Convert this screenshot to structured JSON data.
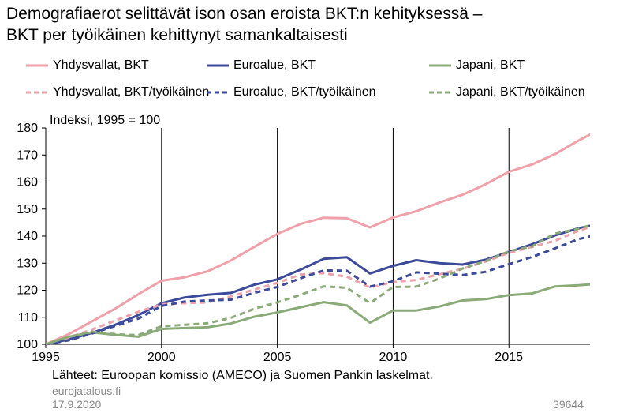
{
  "title_line1": "Demografiaerot selittävät ison osan eroista BKT:n kehityksessä –",
  "title_line2": "BKT per työikäinen kehittynyt samankaltaisesti",
  "source": "Lähteet: Euroopan komissio (AMECO) ja Suomen Pankin laskelmat.",
  "site": "eurojatalous.fi",
  "date": "17.9.2020",
  "code": "39644",
  "chart_data": {
    "type": "line",
    "ylabel": "Indeksi, 1995 = 100",
    "ylim": [
      100,
      180
    ],
    "yticks": [
      100,
      110,
      120,
      130,
      140,
      150,
      160,
      170,
      180
    ],
    "xlim": [
      1995,
      2018.5
    ],
    "xticks": [
      1995,
      2000,
      2005,
      2010,
      2015
    ],
    "x": [
      1995,
      1996,
      1997,
      1998,
      1999,
      2000,
      2001,
      2002,
      2003,
      2004,
      2005,
      2006,
      2007,
      2008,
      2009,
      2010,
      2011,
      2012,
      2013,
      2014,
      2015,
      2016,
      2017,
      2018,
      2019
    ],
    "legend_position": "top",
    "series": [
      {
        "name": "Yhdysvallat, BKT",
        "color": "#f0a0a8",
        "dash": "solid",
        "values": [
          100,
          103.8,
          108.5,
          113.2,
          118.5,
          123.5,
          124.8,
          127,
          131,
          136,
          140.8,
          144.5,
          146.8,
          146.6,
          143.2,
          146.9,
          149.2,
          152.4,
          155.3,
          159.2,
          163.8,
          166.5,
          170.4,
          175.3,
          179.8
        ]
      },
      {
        "name": "Euroalue, BKT",
        "color": "#3c4a9c",
        "dash": "solid",
        "values": [
          100,
          101.8,
          104.2,
          107.2,
          110.8,
          115.2,
          117.3,
          118.3,
          119,
          122,
          124,
          127.6,
          131.6,
          132.2,
          126.2,
          129,
          131.1,
          130,
          129.5,
          131.3,
          134.1,
          137,
          140.3,
          142.9,
          144.8
        ]
      },
      {
        "name": "Japani, BKT",
        "color": "#8aab78",
        "dash": "solid",
        "values": [
          100,
          102.8,
          104.4,
          103.5,
          102.8,
          105.7,
          106,
          106.3,
          107.7,
          110.2,
          111.8,
          113.7,
          115.6,
          114.4,
          108,
          112.5,
          112.5,
          114,
          116.2,
          116.7,
          118.2,
          118.8,
          121.4,
          121.8,
          122.5
        ]
      },
      {
        "name": "Yhdysvallat, BKT/työikäinen",
        "color": "#f0a0a8",
        "dash": "dashed",
        "values": [
          100,
          102.5,
          105.5,
          108.8,
          112,
          114.8,
          115.2,
          115.5,
          117.7,
          120.2,
          122.7,
          125.8,
          126.3,
          125,
          121,
          123,
          123.8,
          125.9,
          127.9,
          130.6,
          133.8,
          136,
          138.3,
          142,
          144.8
        ]
      },
      {
        "name": "Euroalue, BKT/työikäinen",
        "color": "#3c4a9c",
        "dash": "dashed",
        "values": [
          100,
          101.5,
          104,
          106.8,
          109.5,
          114.2,
          115.8,
          116.2,
          116.5,
          119,
          121.2,
          124.4,
          127.3,
          127.2,
          121.3,
          123.3,
          126.6,
          126.1,
          125.6,
          126.8,
          129.6,
          132.3,
          135.5,
          138.9,
          140.8
        ]
      },
      {
        "name": "Japani, BKT/työikäinen",
        "color": "#8aab78",
        "dash": "dashed",
        "values": [
          100,
          102.8,
          104.7,
          103.7,
          103.4,
          106.7,
          107.2,
          107.8,
          109.8,
          113.1,
          115.5,
          118.3,
          121.4,
          120.9,
          115.2,
          121.2,
          121.3,
          124.3,
          128,
          130.8,
          134.4,
          136.2,
          141,
          142.7,
          145.3
        ]
      }
    ]
  }
}
